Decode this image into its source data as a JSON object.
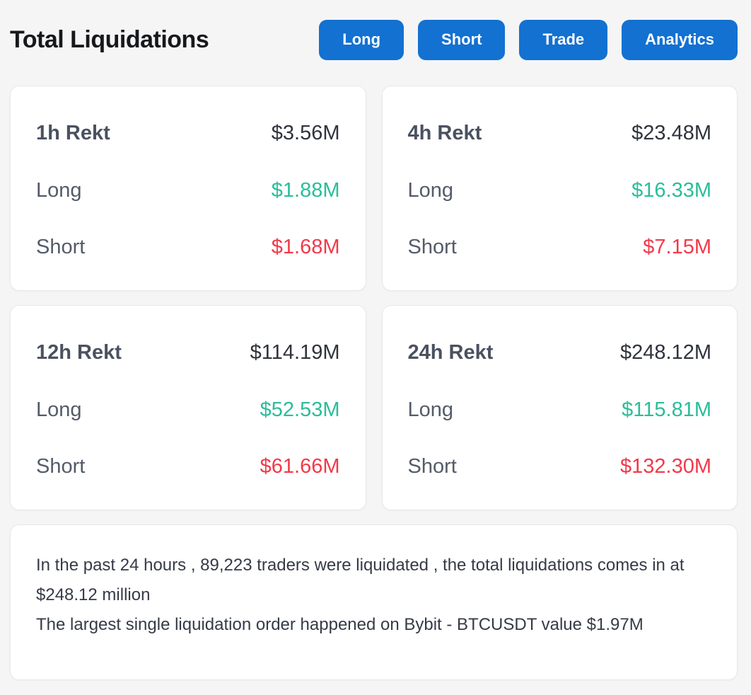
{
  "colors": {
    "page_bg": "#f5f5f6",
    "card_bg": "#ffffff",
    "card_border": "#e7e8ea",
    "title_color": "#17181c",
    "button_blue": "#1371d1",
    "heading_slate": "#4a5160",
    "label_gray": "#545b69",
    "value_dark": "#2f333c",
    "long_green": "#2abd9a",
    "short_red": "#f2394a",
    "summary_text": "#353b47"
  },
  "header": {
    "title": "Total Liquidations",
    "buttons": [
      {
        "label": "Long"
      },
      {
        "label": "Short"
      },
      {
        "label": "Trade"
      },
      {
        "label": "Analytics"
      }
    ]
  },
  "cards": [
    {
      "period": "1h Rekt",
      "total": "$3.56M",
      "long_label": "Long",
      "long_value": "$1.88M",
      "short_label": "Short",
      "short_value": "$1.68M"
    },
    {
      "period": "4h Rekt",
      "total": "$23.48M",
      "long_label": "Long",
      "long_value": "$16.33M",
      "short_label": "Short",
      "short_value": "$7.15M"
    },
    {
      "period": "12h Rekt",
      "total": "$114.19M",
      "long_label": "Long",
      "long_value": "$52.53M",
      "short_label": "Short",
      "short_value": "$61.66M"
    },
    {
      "period": "24h Rekt",
      "total": "$248.12M",
      "long_label": "Long",
      "long_value": "$115.81M",
      "short_label": "Short",
      "short_value": "$132.30M"
    }
  ],
  "summary": {
    "line1": "In the past 24 hours , 89,223 traders were liquidated , the total liquidations comes in at $248.12 million",
    "line2": "The largest single liquidation order happened on Bybit - BTCUSDT value $1.97M"
  }
}
